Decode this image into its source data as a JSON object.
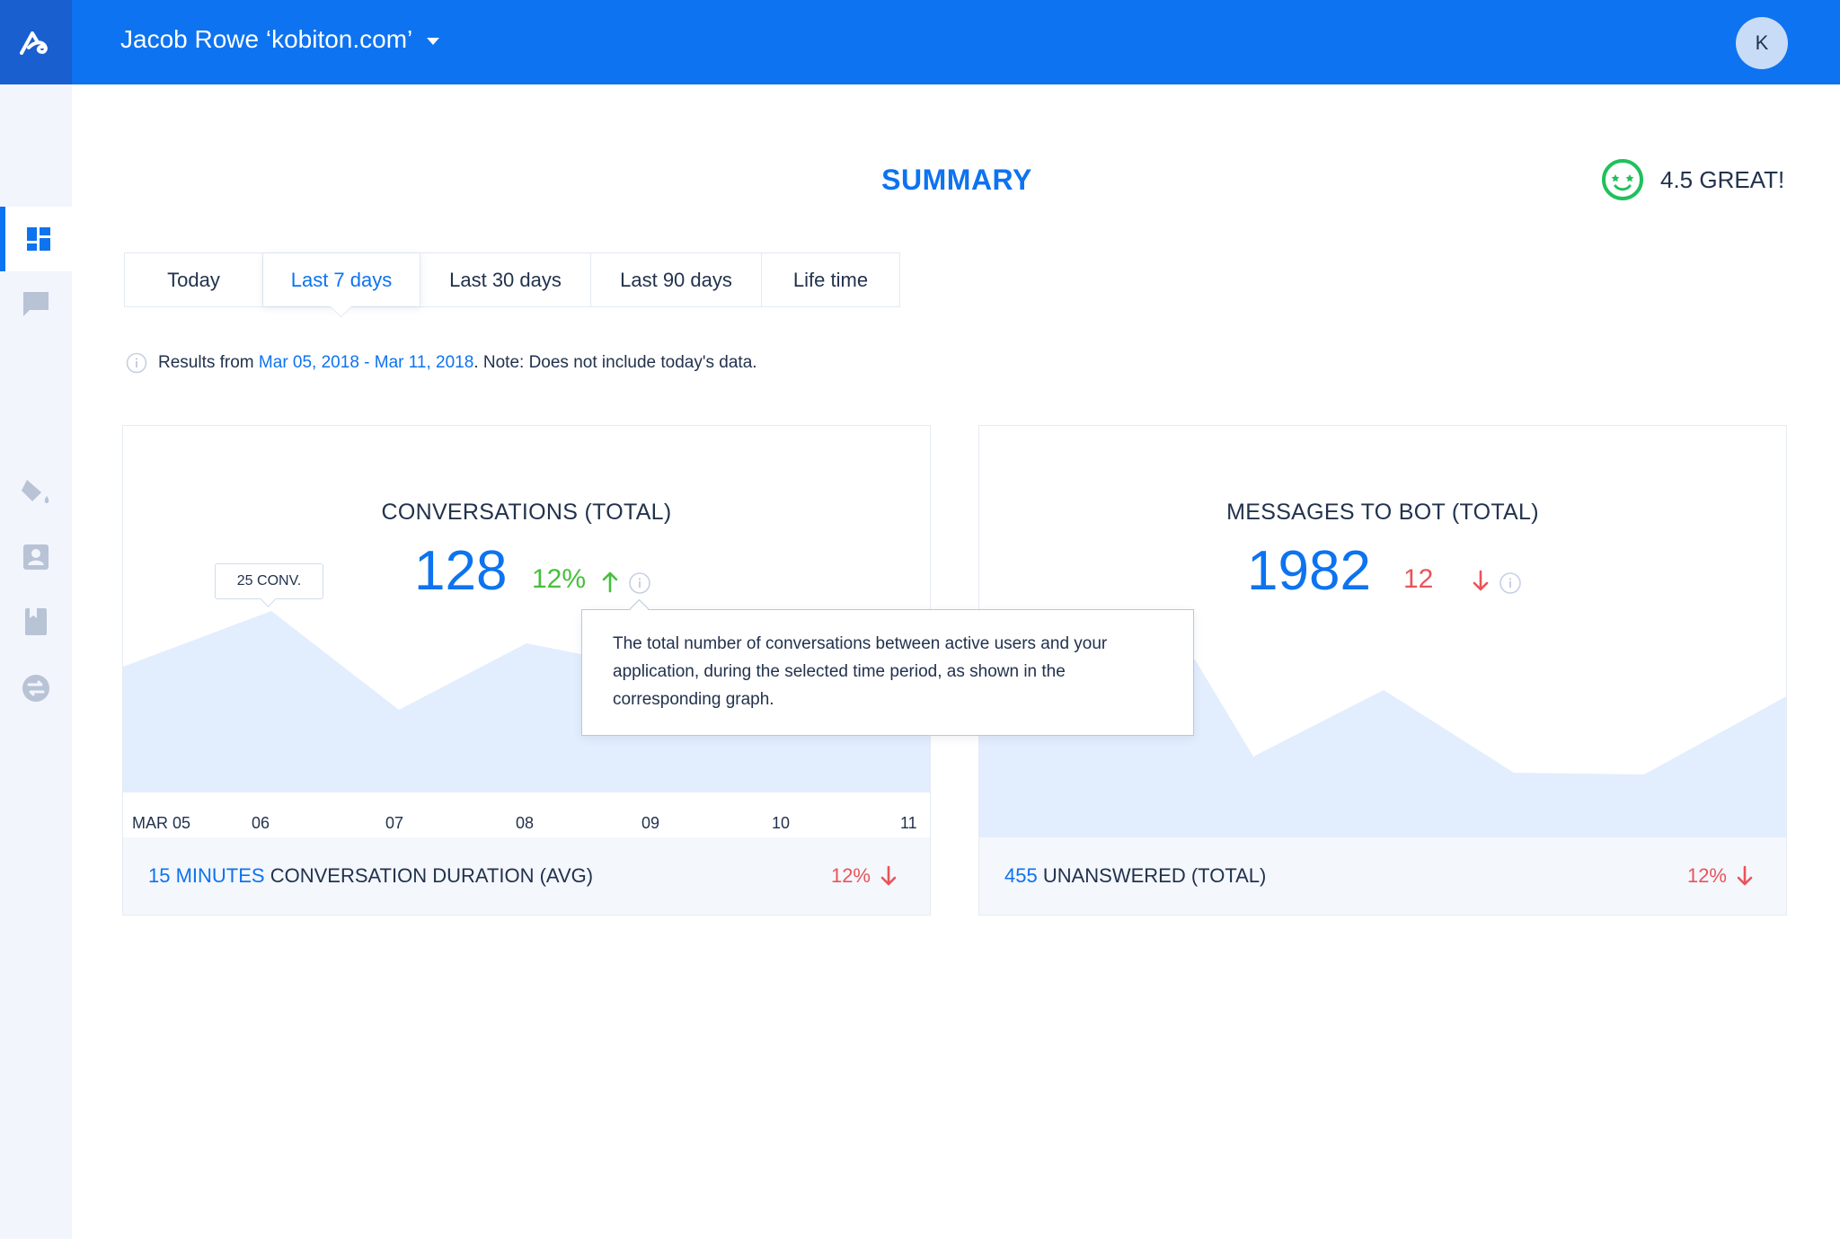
{
  "header": {
    "account_name": "Jacob Rowe ‘kobiton.com’",
    "avatar_initial": "K"
  },
  "sidebar": {
    "items": [
      {
        "icon": "dashboard-icon",
        "active": true
      },
      {
        "icon": "chat-icon",
        "active": false
      },
      {
        "icon": "paint-bucket-icon",
        "active": false
      },
      {
        "icon": "contact-card-icon",
        "active": false
      },
      {
        "icon": "book-icon",
        "active": false
      },
      {
        "icon": "transfer-icon",
        "active": false
      }
    ]
  },
  "page": {
    "title": "SUMMARY",
    "rating_label": "4.5 GREAT!"
  },
  "tabs": [
    {
      "label": "Today",
      "active": false
    },
    {
      "label": "Last 7 days",
      "active": true
    },
    {
      "label": "Last 30 days",
      "active": false
    },
    {
      "label": "Last 90 days",
      "active": false
    },
    {
      "label": "Life time",
      "active": false
    }
  ],
  "note": {
    "prefix": "Results from ",
    "range": "Mar 05, 2018 - Mar 11, 2018",
    "suffix": ". Note: Does not include today's data."
  },
  "conversations_card": {
    "title": "CONVERSATIONS (TOTAL)",
    "value": "128",
    "change": "12%",
    "change_direction": "up",
    "chip_label": "25 CONV.",
    "tooltip": "The total number of conversations between active users and your application, during the selected time period, as shown in the corresponding graph.",
    "x_labels": [
      "MAR 05",
      "06",
      "07",
      "08",
      "09",
      "10",
      "11"
    ],
    "footer_value": "15 MINUTES",
    "footer_label": " CONVERSATION DURATION (AVG)",
    "footer_change": "12%"
  },
  "messages_card": {
    "title": "MESSAGES TO BOT (TOTAL)",
    "value": "1982",
    "change": "12",
    "change_direction": "down",
    "footer_value": "455",
    "footer_label": " UNANSWERED (TOTAL)",
    "footer_change": "12%"
  },
  "colors": {
    "accent": "#0d73f0",
    "up": "#45c03a",
    "down": "#e8545a",
    "area_fill": "#e2eefd"
  }
}
